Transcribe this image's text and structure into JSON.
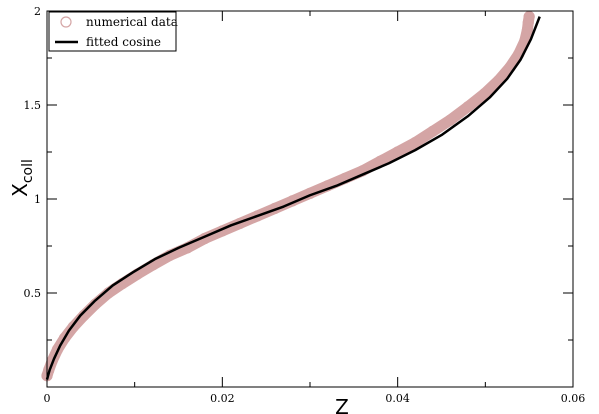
{
  "chart_data": {
    "type": "scatter",
    "xlabel": "Z",
    "ylabel": {
      "main": "X",
      "sub": "coll"
    },
    "xlim": [
      0,
      0.06
    ],
    "ylim": [
      0,
      2
    ],
    "x_ticks": [
      {
        "value": 0,
        "label": "0"
      },
      {
        "value": 0.02,
        "label": "0.02"
      },
      {
        "value": 0.04,
        "label": "0.04"
      },
      {
        "value": 0.06,
        "label": "0.06"
      }
    ],
    "y_ticks": [
      {
        "value": 0.5,
        "label": "0.5"
      },
      {
        "value": 1,
        "label": "1"
      },
      {
        "value": 1.5,
        "label": "1.5"
      },
      {
        "value": 2,
        "label": "2"
      }
    ],
    "x_minor_step": 0.01,
    "y_minor_step": 0.25,
    "grid": false,
    "legend_placement": "top-left",
    "series": [
      {
        "name": "numerical data",
        "style": "open-circles",
        "color": "#d4a5a5",
        "x": [
          0,
          0.0002,
          0.0006,
          0.0012,
          0.002,
          0.003,
          0.0042,
          0.0055,
          0.007,
          0.0086,
          0.0103,
          0.0121,
          0.014,
          0.016,
          0.018,
          0.02,
          0.022,
          0.024,
          0.026,
          0.028,
          0.03,
          0.032,
          0.034,
          0.036,
          0.038,
          0.04,
          0.042,
          0.044,
          0.046,
          0.048,
          0.0499,
          0.0515,
          0.0528,
          0.0538,
          0.0545,
          0.0548,
          0.0549,
          0.055
        ],
        "y": [
          0.06,
          0.09,
          0.14,
          0.2,
          0.26,
          0.32,
          0.38,
          0.44,
          0.5,
          0.55,
          0.6,
          0.65,
          0.7,
          0.74,
          0.79,
          0.83,
          0.87,
          0.91,
          0.95,
          0.99,
          1.03,
          1.07,
          1.11,
          1.15,
          1.2,
          1.25,
          1.3,
          1.36,
          1.42,
          1.49,
          1.56,
          1.63,
          1.7,
          1.77,
          1.84,
          1.9,
          1.94,
          1.97
        ]
      },
      {
        "name": "fitted cosine",
        "style": "line",
        "color": "#000000",
        "x": [
          0,
          0.0003,
          0.0008,
          0.0015,
          0.0025,
          0.0038,
          0.0055,
          0.0075,
          0.0098,
          0.0123,
          0.015,
          0.018,
          0.021,
          0.024,
          0.027,
          0.03,
          0.033,
          0.036,
          0.039,
          0.042,
          0.045,
          0.048,
          0.0505,
          0.0525,
          0.054,
          0.0552,
          0.0562
        ],
        "y": [
          0.04,
          0.09,
          0.15,
          0.22,
          0.3,
          0.38,
          0.46,
          0.54,
          0.61,
          0.68,
          0.74,
          0.8,
          0.86,
          0.91,
          0.96,
          1.02,
          1.07,
          1.13,
          1.19,
          1.26,
          1.34,
          1.44,
          1.54,
          1.64,
          1.74,
          1.85,
          1.97
        ]
      }
    ]
  }
}
